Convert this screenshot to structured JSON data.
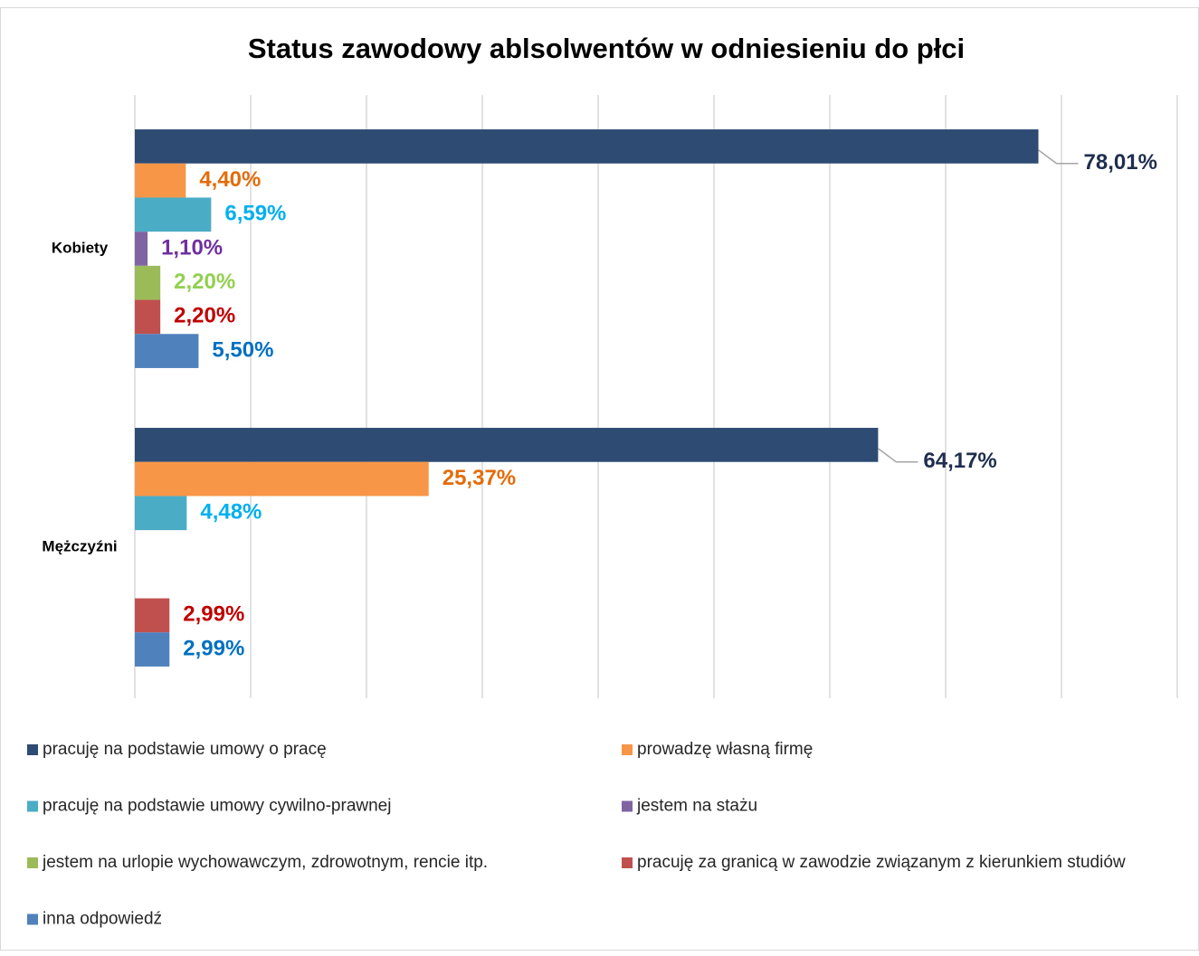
{
  "chart_data": {
    "type": "bar",
    "orientation": "horizontal",
    "title": "Status zawodowy ablsolwentów w odniesieniu do płci",
    "categories": [
      "Kobiety",
      "Mężczyźni"
    ],
    "series": [
      {
        "name": "pracuję na podstawie umowy o pracę",
        "color": "#2e4b73",
        "label_color": "#1f2d4f",
        "values": [
          78.01,
          64.17
        ],
        "value_labels": [
          "78,01%",
          "64,17%"
        ]
      },
      {
        "name": "prowadzę własną firmę",
        "color": "#f79646",
        "label_color": "#e36c0a",
        "values": [
          4.4,
          25.37
        ],
        "value_labels": [
          "4,40%",
          "25,37%"
        ]
      },
      {
        "name": "pracuję na podstawie umowy cywilno-prawnej",
        "color": "#4bacc6",
        "label_color": "#00b0f0",
        "values": [
          6.59,
          4.48
        ],
        "value_labels": [
          "6,59%",
          "4,48%"
        ]
      },
      {
        "name": "jestem na stażu",
        "color": "#8064a2",
        "label_color": "#7030a0",
        "values": [
          1.1,
          null
        ],
        "value_labels": [
          "1,10%",
          null
        ]
      },
      {
        "name": "jestem na urlopie wychowawczym, zdrowotnym, rencie itp.",
        "color": "#9bbb59",
        "label_color": "#92d050",
        "values": [
          2.2,
          null
        ],
        "value_labels": [
          "2,20%",
          null
        ]
      },
      {
        "name": "pracuję za granicą w zawodzie związanym z kierunkiem studiów",
        "color": "#c0504d",
        "label_color": "#c00000",
        "values": [
          2.2,
          2.99
        ],
        "value_labels": [
          "2,20%",
          "2,99%"
        ]
      },
      {
        "name": "inna odpowiedź",
        "color": "#4f81bd",
        "label_color": "#0070c0",
        "values": [
          5.5,
          2.99
        ],
        "value_labels": [
          "5,50%",
          "2,99%"
        ]
      }
    ],
    "xlim": [
      0,
      90
    ],
    "xticks": [
      0,
      10,
      20,
      30,
      40,
      50,
      60,
      70,
      80,
      90
    ],
    "grid": true,
    "legend": "bottom"
  }
}
